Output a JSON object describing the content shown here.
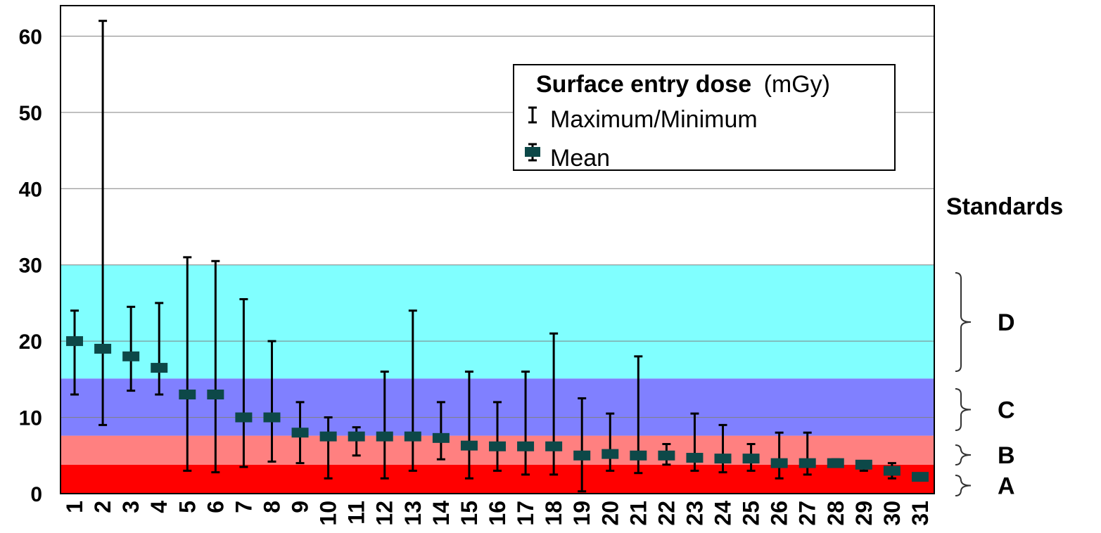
{
  "chart_data": {
    "type": "errorbar",
    "title": "",
    "xlabel": "",
    "ylabel": "",
    "ylim": [
      0,
      64
    ],
    "yticks": [
      0,
      10,
      20,
      30,
      40,
      50,
      60
    ],
    "grid": true,
    "categories": [
      "1",
      "2",
      "3",
      "4",
      "5",
      "6",
      "7",
      "8",
      "9",
      "10",
      "11",
      "12",
      "13",
      "14",
      "15",
      "16",
      "17",
      "18",
      "19",
      "20",
      "21",
      "22",
      "23",
      "24",
      "25",
      "26",
      "27",
      "28",
      "29",
      "30",
      "31"
    ],
    "series": [
      {
        "name": "Mean",
        "values": [
          20,
          19,
          18,
          16.5,
          13,
          13,
          10,
          10,
          8,
          7.5,
          7.5,
          7.5,
          7.5,
          7.3,
          6.3,
          6.2,
          6.2,
          6.2,
          5,
          5.2,
          5,
          5,
          4.7,
          4.6,
          4.6,
          4,
          4,
          4,
          3.8,
          3,
          2.2
        ]
      },
      {
        "name": "Maximum/Minimum",
        "max": [
          24,
          62,
          24.5,
          25,
          31,
          30.5,
          25.5,
          20,
          12,
          10,
          8.7,
          16,
          24,
          12,
          16,
          12,
          16,
          21,
          12.5,
          10.5,
          18,
          6.5,
          10.5,
          9,
          6.5,
          8,
          8,
          4.5,
          4,
          4,
          2.2
        ],
        "min": [
          13,
          9,
          13.5,
          13,
          3,
          2.8,
          3.5,
          4.2,
          4,
          2,
          5,
          2,
          3,
          4.5,
          2,
          3,
          2.5,
          2.5,
          0.3,
          3,
          2.7,
          3.8,
          3,
          2.8,
          3,
          2,
          2.5,
          3.7,
          3,
          2,
          2.2
        ]
      }
    ],
    "bands": [
      {
        "label": "A",
        "from": 0,
        "to": 3.8,
        "color": "#ff0000"
      },
      {
        "label": "B",
        "from": 3.8,
        "to": 7.6,
        "color": "#ff8080"
      },
      {
        "label": "C",
        "from": 7.6,
        "to": 15.1,
        "color": "#8080ff"
      },
      {
        "label": "D",
        "from": 15.1,
        "to": 30,
        "color": "#80ffff"
      }
    ],
    "legend": {
      "title_bold": "Surface entry dose",
      "title_unit": "(mGy)",
      "items": [
        "Maximum/Minimum",
        "Mean"
      ],
      "placement": "top-right"
    },
    "side_label": "Standards"
  },
  "colors": {
    "marker": "#0d4848",
    "errorbar": "#000000",
    "grid": "#808080"
  }
}
